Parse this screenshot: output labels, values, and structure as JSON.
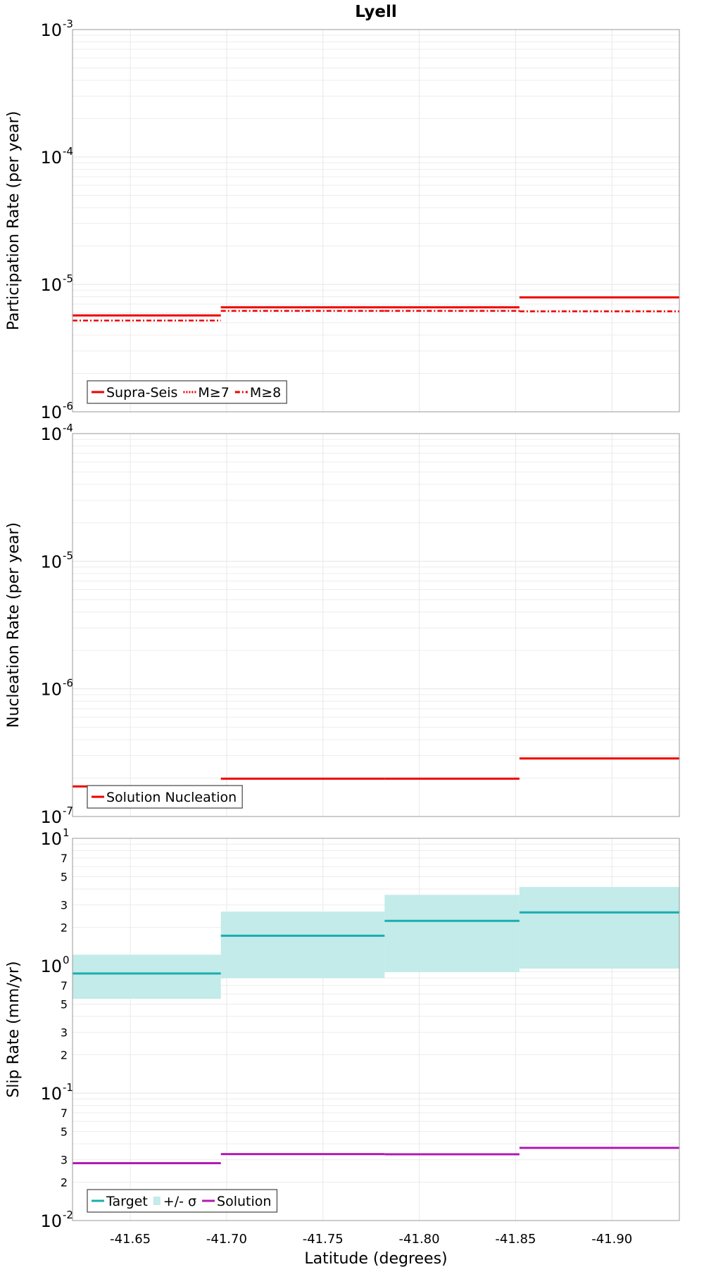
{
  "chart_data": [
    {
      "type": "line",
      "title": "Lyell",
      "xlabel": "Latitude (degrees)",
      "ylabel": "Participation Rate (per year)",
      "yscale": "log",
      "ylim": [
        1e-06,
        0.001
      ],
      "xlim": [
        -41.62,
        -41.935
      ],
      "x_reversed": true,
      "grid": true,
      "legend_position": "bottom-left",
      "y_ticks": [
        {
          "base": "10",
          "exp": "-6",
          "value": 1e-06
        },
        {
          "base": "10",
          "exp": "-5",
          "value": 1e-05
        },
        {
          "base": "10",
          "exp": "-4",
          "value": 0.0001
        },
        {
          "base": "10",
          "exp": "-3",
          "value": 0.001
        }
      ],
      "bin_edges": [
        -41.62,
        -41.697,
        -41.782,
        -41.852,
        -41.935
      ],
      "series": [
        {
          "name": "Supra-Seis",
          "color": "#ee0000",
          "style": "solid",
          "values": [
            5.7e-06,
            6.6e-06,
            6.6e-06,
            7.9e-06
          ]
        },
        {
          "name": "M≥7",
          "color": "#ee0000",
          "style": "dotted",
          "values": [
            5.7e-06,
            6.6e-06,
            6.6e-06,
            7.9e-06
          ]
        },
        {
          "name": "M≥8",
          "color": "#ee0000",
          "style": "dashdot",
          "values": [
            5.2e-06,
            6.2e-06,
            6.2e-06,
            6.15e-06
          ]
        }
      ]
    },
    {
      "type": "line",
      "ylabel": "Nucleation Rate (per year)",
      "yscale": "log",
      "ylim": [
        1e-07,
        0.0001
      ],
      "xlim": [
        -41.62,
        -41.935
      ],
      "x_reversed": true,
      "grid": true,
      "legend_position": "bottom-left",
      "y_ticks": [
        {
          "base": "10",
          "exp": "-7",
          "value": 1e-07
        },
        {
          "base": "10",
          "exp": "-6",
          "value": 1e-06
        },
        {
          "base": "10",
          "exp": "-5",
          "value": 1e-05
        },
        {
          "base": "10",
          "exp": "-4",
          "value": 0.0001
        }
      ],
      "bin_edges": [
        -41.62,
        -41.697,
        -41.782,
        -41.852,
        -41.935
      ],
      "series": [
        {
          "name": "Solution Nucleation",
          "color": "#ee0000",
          "style": "solid",
          "values": [
            1.72e-07,
            1.98e-07,
            1.98e-07,
            2.85e-07
          ]
        }
      ]
    },
    {
      "type": "line",
      "xlabel": "Latitude (degrees)",
      "ylabel": "Slip Rate (mm/yr)",
      "yscale": "log",
      "ylim": [
        0.01,
        10
      ],
      "xlim": [
        -41.62,
        -41.935
      ],
      "x_reversed": true,
      "grid": true,
      "legend_position": "bottom-left",
      "y_ticks": [
        {
          "base": "10",
          "exp": "-2",
          "value": 0.01
        },
        {
          "base": "10",
          "exp": "-1",
          "value": 0.1
        },
        {
          "base": "10",
          "exp": "0",
          "value": 1
        },
        {
          "base": "10",
          "exp": "1",
          "value": 10
        }
      ],
      "y_minor_labels": [
        "2",
        "3",
        "5",
        "7"
      ],
      "x_tick_labels": [
        "-41.65",
        "-41.70",
        "-41.75",
        "-41.80",
        "-41.85",
        "-41.90"
      ],
      "x_ticks": [
        -41.65,
        -41.7,
        -41.75,
        -41.8,
        -41.85,
        -41.9
      ],
      "bin_edges": [
        -41.62,
        -41.697,
        -41.782,
        -41.852,
        -41.935
      ],
      "series": [
        {
          "name": "Target",
          "color": "#1aadad",
          "style": "solid",
          "values": [
            0.87,
            1.72,
            2.25,
            2.62
          ]
        },
        {
          "name": "+/- σ",
          "color": "#c2ebe9",
          "style": "band",
          "lower": [
            0.55,
            0.8,
            0.89,
            0.95
          ],
          "upper": [
            1.22,
            2.66,
            3.6,
            4.15
          ]
        },
        {
          "name": "Solution",
          "color": "#b21ab2",
          "style": "solid",
          "values": [
            0.0282,
            0.0332,
            0.0331,
            0.0372
          ]
        }
      ]
    }
  ]
}
